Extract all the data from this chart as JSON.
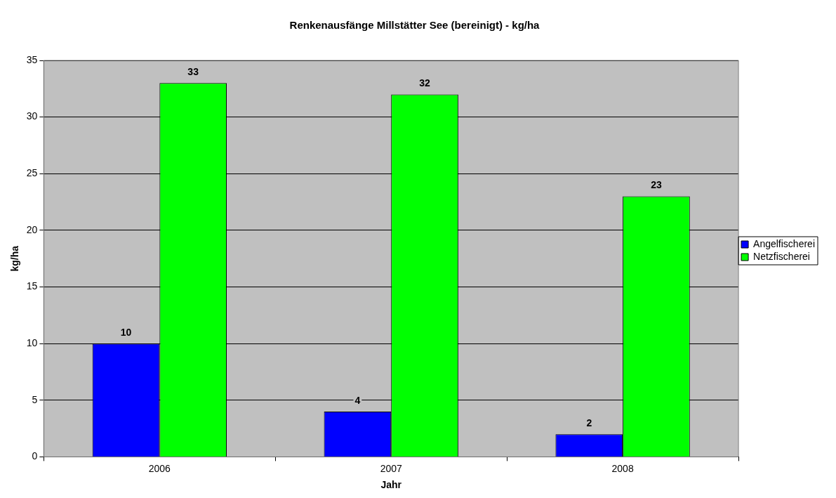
{
  "chart_data": {
    "type": "bar",
    "title": "Renkenausfänge Millstätter See (bereinigt) - kg/ha",
    "xlabel": "Jahr",
    "ylabel": "kg/ha",
    "categories": [
      "2006",
      "2007",
      "2008"
    ],
    "series": [
      {
        "name": "Angelfischerei",
        "color": "#0000ff",
        "values": [
          10,
          4,
          2
        ]
      },
      {
        "name": "Netzfischerei",
        "color": "#00ff00",
        "values": [
          33,
          32,
          23
        ]
      }
    ],
    "ylim": [
      0,
      35
    ],
    "yticks": [
      0,
      5,
      10,
      15,
      20,
      25,
      30,
      35
    ],
    "grid": "y",
    "legend": "right",
    "data_labels": true
  }
}
